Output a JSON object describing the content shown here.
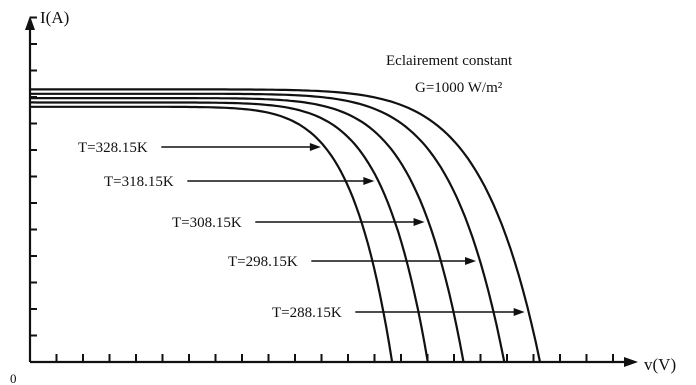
{
  "chart_data": {
    "type": "line",
    "title": "",
    "ylabel": "I(A)",
    "xlabel": "v(V)",
    "origin_label": "0",
    "annotation": {
      "line1": "Eclairement constant",
      "line2": "G=1000 W/m²"
    },
    "series": [
      {
        "name": "T=328.15K",
        "isc": 0.88,
        "voc": 0.71
      },
      {
        "name": "T=318.15K",
        "isc": 0.895,
        "voc": 0.78
      },
      {
        "name": "T=308.15K",
        "isc": 0.91,
        "voc": 0.85
      },
      {
        "name": "T=298.15K",
        "isc": 0.925,
        "voc": 0.93
      },
      {
        "name": "T=288.15K",
        "isc": 0.94,
        "voc": 1.0
      }
    ],
    "grid": false
  }
}
